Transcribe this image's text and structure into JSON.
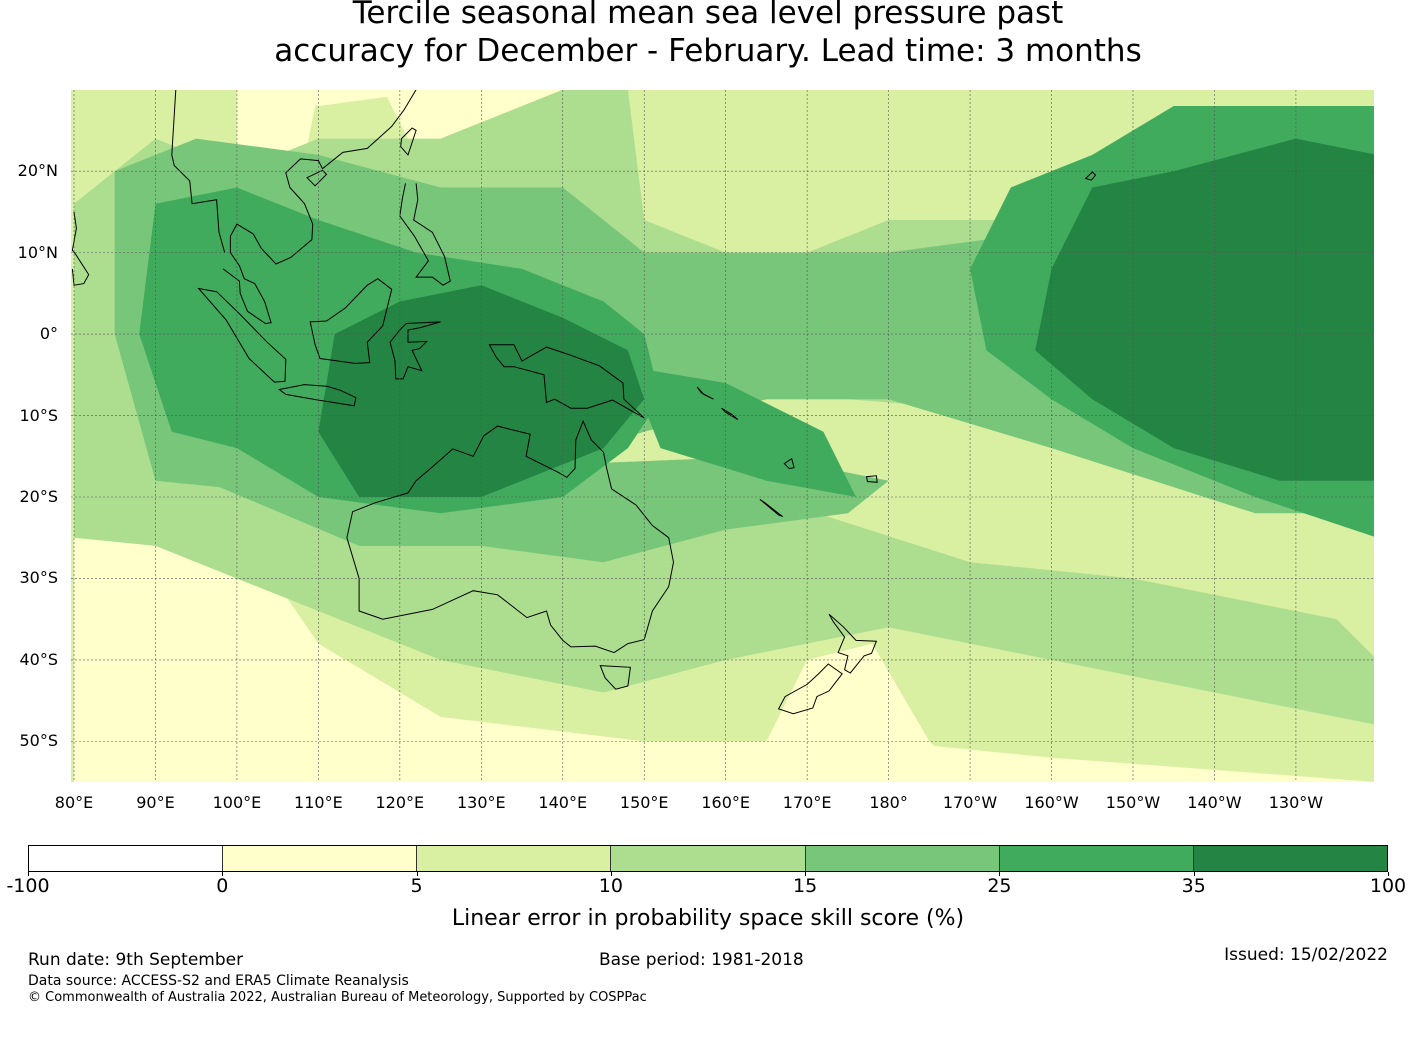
{
  "title": {
    "line1": "Tercile seasonal mean sea level pressure past",
    "line2": "accuracy for December - February. Lead time: 3 months"
  },
  "map": {
    "lat_labels": [
      "20°N",
      "10°N",
      "0°",
      "10°S",
      "20°S",
      "30°S",
      "40°S",
      "50°S"
    ],
    "lon_labels": [
      "80°E",
      "90°E",
      "100°E",
      "110°E",
      "120°E",
      "130°E",
      "140°E",
      "150°E",
      "160°E",
      "170°E",
      "180°",
      "170°W",
      "160°W",
      "150°W",
      "140°W",
      "130°W"
    ],
    "colors": [
      "#ffffff",
      "#ffffcc",
      "#d9f0a3",
      "#addd8e",
      "#78c679",
      "#41ab5d",
      "#238443"
    ]
  },
  "colorbar": {
    "ticks": [
      "-100",
      "0",
      "5",
      "10",
      "15",
      "25",
      "35",
      "100"
    ],
    "label": "Linear error in probability space skill score (%)"
  },
  "footer": {
    "run_date": "Run date: 9th September",
    "base_period": "Base period: 1981-2018",
    "issued": "Issued: 15/02/2022",
    "data_source": "Data source: ACCESS-S2 and ERA5 Climate Reanalysis",
    "copyright": "© Commonwealth of Australia 2022, Australian Bureau of Meteorology, Supported by COSPPac"
  }
}
